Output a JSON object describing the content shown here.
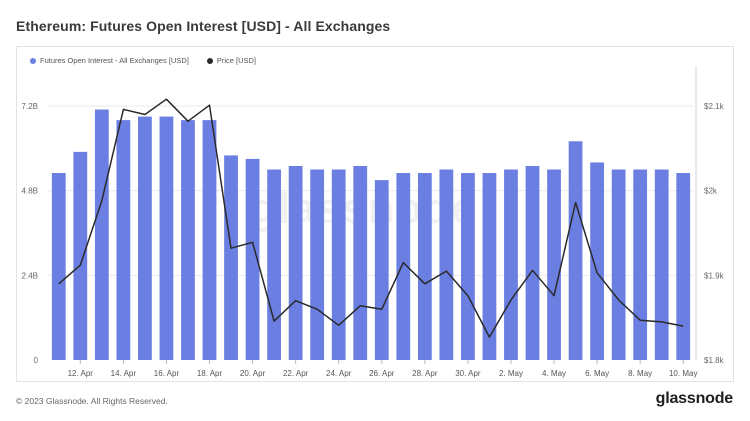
{
  "header": {
    "title": "Ethereum: Futures Open Interest [USD] - All Exchanges"
  },
  "footer": {
    "copyright": "© 2023 Glassnode. All Rights Reserved.",
    "brand": "glassnode"
  },
  "watermark": "glassnode",
  "colors": {
    "bars": "#6b7fe3",
    "price": "#2a2a2a",
    "grid": "#ebebeb"
  },
  "chart_data": {
    "type": "bar",
    "legend": [
      {
        "name": "Futures Open Interest - All Exchanges [USD]",
        "color": "#6b7fe3",
        "series": "open_interest"
      },
      {
        "name": "Price [USD]",
        "color": "#2a2a2a",
        "series": "price"
      }
    ],
    "legend_position": "top-left",
    "x_tick_labels": [
      "12. Apr",
      "14. Apr",
      "16. Apr",
      "18. Apr",
      "20. Apr",
      "22. Apr",
      "24. Apr",
      "26. Apr",
      "28. Apr",
      "30. Apr",
      "2. May",
      "4. May",
      "6. May",
      "8. May",
      "10. May"
    ],
    "y_left": {
      "ticks": [
        "0",
        "2.4B",
        "4.8B",
        "7.2B"
      ],
      "lim": [
        0,
        7.2
      ]
    },
    "y_right": {
      "ticks": [
        "$1.8k",
        "$1.9k",
        "$2k",
        "$2.1k"
      ],
      "lim": [
        1800,
        2100
      ]
    },
    "grid": true,
    "series": [
      {
        "name": "Futures Open Interest - All Exchanges [USD]",
        "id": "open_interest",
        "axis": "left",
        "unit": "billion USD",
        "x": [
          "11. Apr",
          "12. Apr",
          "13. Apr",
          "14. Apr",
          "15. Apr",
          "16. Apr",
          "17. Apr",
          "18. Apr",
          "19. Apr",
          "20. Apr",
          "21. Apr",
          "22. Apr",
          "23. Apr",
          "24. Apr",
          "25. Apr",
          "26. Apr",
          "27. Apr",
          "28. Apr",
          "29. Apr",
          "30. Apr",
          "1. May",
          "2. May",
          "3. May",
          "4. May",
          "5. May",
          "6. May",
          "7. May",
          "8. May",
          "9. May",
          "10. May"
        ],
        "values": [
          5.3,
          5.9,
          7.1,
          6.8,
          6.9,
          6.9,
          6.8,
          6.8,
          5.8,
          5.7,
          5.4,
          5.5,
          5.4,
          5.4,
          5.5,
          5.1,
          5.3,
          5.3,
          5.4,
          5.3,
          5.3,
          5.4,
          5.5,
          5.4,
          6.2,
          5.6,
          5.4,
          5.4,
          5.4,
          5.3
        ]
      },
      {
        "name": "Price [USD]",
        "id": "price",
        "axis": "right",
        "unit": "USD",
        "values": [
          1890,
          1912,
          1988,
          2096,
          2090,
          2108,
          2082,
          2101,
          1932,
          1939,
          1846,
          1870,
          1860,
          1841,
          1864,
          1860,
          1915,
          1890,
          1905,
          1876,
          1827,
          1871,
          1906,
          1876,
          1986,
          1903,
          1871,
          1847,
          1845,
          1840
        ]
      }
    ]
  }
}
